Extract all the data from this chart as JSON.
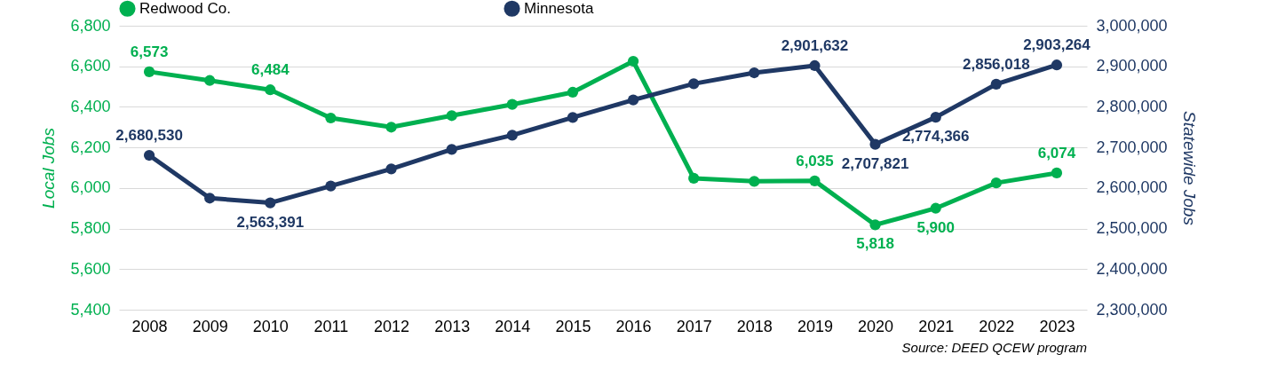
{
  "chart_data": {
    "type": "line",
    "ylabel": "Local Jobs",
    "y2label": "Statewide Jobs",
    "categories": [
      "2008",
      "2009",
      "2010",
      "2011",
      "2012",
      "2013",
      "2014",
      "2015",
      "2016",
      "2017",
      "2018",
      "2019",
      "2020",
      "2021",
      "2022",
      "2023"
    ],
    "series": [
      {
        "name": "Redwood Co.",
        "color": "#00b050",
        "values": [
          6573,
          6530,
          6484,
          6345,
          6300,
          6357,
          6412,
          6472,
          6625,
          6048,
          6033,
          6035,
          5818,
          5900,
          6025,
          6074
        ],
        "value_labels": [
          "6,573",
          null,
          "6,484",
          null,
          null,
          null,
          null,
          null,
          null,
          null,
          null,
          "6,035",
          "5,818",
          "5,900",
          null,
          "6,074"
        ]
      },
      {
        "name": "Minnesota",
        "color": "#1f3864",
        "axis": "y2",
        "values": [
          2680530,
          2575000,
          2563391,
          2605000,
          2647000,
          2695000,
          2730000,
          2774000,
          2817000,
          2857000,
          2884000,
          2901632,
          2707821,
          2774366,
          2856018,
          2903264
        ],
        "value_labels": [
          "2,680,530",
          null,
          "2,563,391",
          null,
          null,
          null,
          null,
          null,
          null,
          null,
          null,
          "2,901,632",
          "2,707,821",
          "2,774,366",
          "2,856,018",
          "2,903,264"
        ]
      }
    ],
    "ylim": [
      5400,
      6800
    ],
    "yticks": [
      {
        "value": 5400,
        "label": "5,400"
      },
      {
        "value": 5600,
        "label": "5,600"
      },
      {
        "value": 5800,
        "label": "5,800"
      },
      {
        "value": 6000,
        "label": "6,000"
      },
      {
        "value": 6200,
        "label": "6,200"
      },
      {
        "value": 6400,
        "label": "6,400"
      },
      {
        "value": 6600,
        "label": "6,600"
      },
      {
        "value": 6800,
        "label": "6,800"
      }
    ],
    "y2lim": [
      2300000,
      3000000
    ],
    "y2ticks": [
      {
        "value": 2300000,
        "label": "2,300,000"
      },
      {
        "value": 2400000,
        "label": "2,400,000"
      },
      {
        "value": 2500000,
        "label": "2,500,000"
      },
      {
        "value": 2600000,
        "label": "2,600,000"
      },
      {
        "value": 2700000,
        "label": "2,700,000"
      },
      {
        "value": 2800000,
        "label": "2,800,000"
      },
      {
        "value": 2900000,
        "label": "2,900,000"
      },
      {
        "value": 3000000,
        "label": "3,000,000"
      }
    ],
    "grid": "y",
    "legend": "top",
    "marker": "circle",
    "line_style": "solid",
    "annotations": [
      "Source: DEED QCEW program"
    ]
  }
}
